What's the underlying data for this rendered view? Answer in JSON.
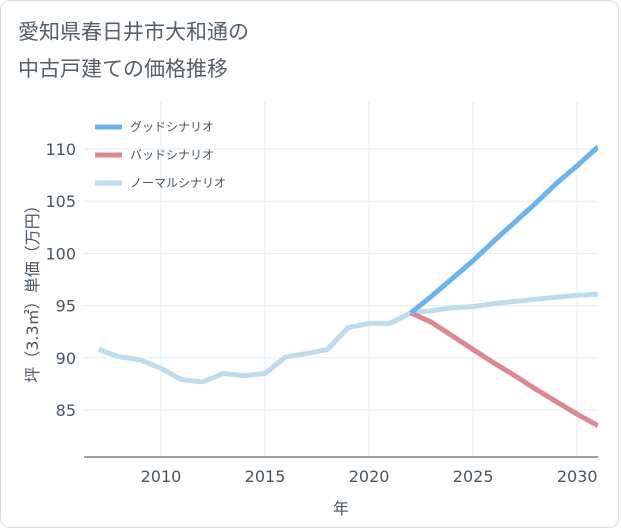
{
  "title_line1": "愛知県春日井市大和通の",
  "title_line2": "中古戸建ての価格推移",
  "chart_data": {
    "type": "line",
    "title": "愛知県春日井市大和通の中古戸建ての価格推移",
    "xlabel": "年",
    "ylabel": "坪（3.3㎡）単価（万円）",
    "xlim": [
      2006.3,
      2031
    ],
    "ylim": [
      80.5,
      114.5
    ],
    "xticks": [
      2010,
      2015,
      2020,
      2025,
      2030
    ],
    "yticks": [
      85,
      90,
      95,
      100,
      105,
      110
    ],
    "xtick_labels": [
      "2010",
      "2015",
      "2020",
      "2025",
      "2030"
    ],
    "ytick_labels": [
      "85",
      "90",
      "95",
      "100",
      "105",
      "110"
    ],
    "legend_position": "top-left",
    "series": [
      {
        "name": "グッドシナリオ",
        "color": "#6cb4ee",
        "x": [
          2022,
          2023,
          2024,
          2025,
          2026,
          2027,
          2028,
          2029,
          2030,
          2031
        ],
        "y": [
          94.3,
          95.9,
          97.6,
          99.3,
          101.2,
          103.0,
          104.8,
          106.7,
          108.4,
          110.2
        ]
      },
      {
        "name": "バッドシナリオ",
        "color": "#dd8893",
        "x": [
          2022,
          2023,
          2024,
          2025,
          2026,
          2027,
          2028,
          2029,
          2030,
          2031
        ],
        "y": [
          94.3,
          93.4,
          92.1,
          90.8,
          89.5,
          88.3,
          87.0,
          85.8,
          84.6,
          83.5
        ]
      },
      {
        "name": "ノーマルシナリオ",
        "color": "#bddcee",
        "x": [
          2007,
          2008,
          2009,
          2010,
          2011,
          2012,
          2013,
          2014,
          2015,
          2016,
          2017,
          2018,
          2019,
          2020,
          2021,
          2022,
          2023,
          2024,
          2025,
          2026,
          2027,
          2028,
          2029,
          2030,
          2031
        ],
        "y": [
          90.8,
          90.1,
          89.8,
          89.0,
          87.9,
          87.7,
          88.5,
          88.3,
          88.5,
          90.1,
          90.4,
          90.8,
          92.9,
          93.3,
          93.3,
          94.3,
          94.5,
          94.8,
          94.9,
          95.2,
          95.4,
          95.6,
          95.8,
          96.0,
          96.1
        ]
      }
    ]
  }
}
